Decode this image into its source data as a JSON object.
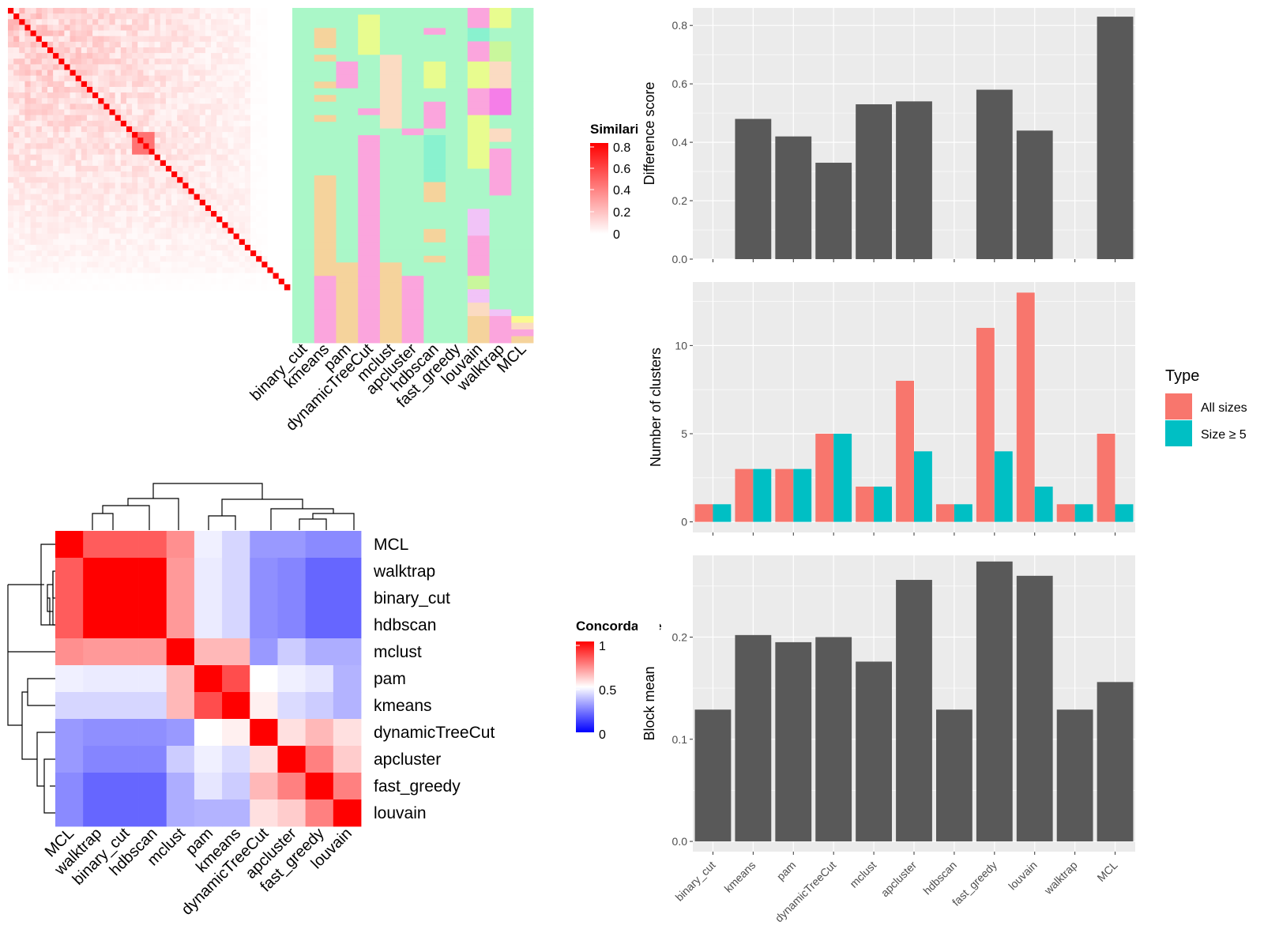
{
  "methods_assign": [
    "binary_cut",
    "kmeans",
    "pam",
    "dynamicTreeCut",
    "mclust",
    "apcluster",
    "hdbscan",
    "fast_greedy",
    "louvain",
    "walktrap",
    "MCL"
  ],
  "methods_concord": [
    "MCL",
    "walktrap",
    "binary_cut",
    "hdbscan",
    "mclust",
    "pam",
    "kmeans",
    "dynamicTreeCut",
    "apcluster",
    "fast_greedy",
    "louvain"
  ],
  "colors": {
    "red": "#ff0000",
    "blue": "#0000ff",
    "white": "#ffffff",
    "panel": "#ebebeb",
    "bar": "#595959",
    "coral": "#f8766d",
    "teal": "#00bfc4",
    "assign_bg": "#aaf7c8"
  },
  "similarity_legend": {
    "title": "Similarity",
    "ticks": [
      "0.8",
      "0.6",
      "0.4",
      "0.2",
      "0"
    ]
  },
  "concordance_legend": {
    "title": "Concordance",
    "ticks": [
      "1",
      "0.5",
      "0"
    ]
  },
  "type_legend": {
    "title": "Type",
    "items": [
      "All sizes",
      "Size ≥ 5"
    ]
  },
  "chart_data": [
    {
      "type": "heatmap",
      "id": "similarity-matrix",
      "n": 50,
      "diagonal": 1,
      "range": [
        0,
        0.8
      ]
    },
    {
      "type": "heatmap",
      "id": "cluster-assignment",
      "columns": [
        "binary_cut",
        "kmeans",
        "pam",
        "dynamicTreeCut",
        "mclust",
        "apcluster",
        "hdbscan",
        "fast_greedy",
        "louvain",
        "walktrap",
        "MCL"
      ],
      "rows": 50,
      "cluster_colors": [
        "#aaf7c8",
        "#f5d39c",
        "#fba5dd",
        "#e8fc8f",
        "#fbdbc2",
        "#89f2cf",
        "#f1c3f7",
        "#f57ee8",
        "#c9f79c",
        "#f9fa8e"
      ],
      "assignments": [
        [
          0,
          0,
          0,
          0,
          0,
          0,
          0,
          0,
          0,
          0,
          0,
          0,
          0,
          0,
          0,
          0,
          0,
          0,
          0,
          0,
          0,
          0,
          0,
          0,
          0,
          0,
          0,
          0,
          0,
          0,
          0,
          0,
          0,
          0,
          0,
          0,
          0,
          0,
          0,
          0,
          0,
          0,
          0,
          0,
          0,
          0,
          0,
          0,
          0,
          0
        ],
        [
          0,
          0,
          0,
          1,
          1,
          1,
          0,
          1,
          0,
          0,
          0,
          1,
          0,
          1,
          0,
          0,
          1,
          0,
          0,
          0,
          0,
          0,
          0,
          0,
          0,
          1,
          1,
          1,
          1,
          1,
          1,
          1,
          1,
          1,
          1,
          1,
          1,
          1,
          1,
          1,
          2,
          2,
          2,
          2,
          2,
          2,
          2,
          2,
          2,
          2
        ],
        [
          0,
          0,
          0,
          0,
          0,
          0,
          0,
          0,
          2,
          2,
          2,
          2,
          0,
          0,
          0,
          0,
          0,
          0,
          0,
          0,
          0,
          0,
          0,
          0,
          0,
          0,
          0,
          0,
          0,
          0,
          0,
          0,
          0,
          0,
          0,
          0,
          0,
          0,
          1,
          1,
          1,
          1,
          1,
          1,
          1,
          1,
          1,
          1,
          1,
          1
        ],
        [
          0,
          3,
          3,
          3,
          3,
          3,
          3,
          0,
          0,
          0,
          0,
          0,
          0,
          0,
          0,
          2,
          0,
          0,
          0,
          2,
          2,
          2,
          2,
          2,
          2,
          2,
          2,
          2,
          2,
          2,
          2,
          2,
          2,
          2,
          2,
          2,
          2,
          2,
          2,
          2,
          2,
          2,
          2,
          2,
          2,
          2,
          2,
          2,
          2,
          2
        ],
        [
          0,
          0,
          0,
          0,
          0,
          0,
          0,
          4,
          4,
          4,
          4,
          4,
          4,
          4,
          4,
          4,
          4,
          4,
          0,
          0,
          0,
          0,
          0,
          0,
          0,
          0,
          0,
          0,
          0,
          0,
          0,
          0,
          0,
          0,
          0,
          0,
          0,
          0,
          1,
          1,
          1,
          1,
          1,
          1,
          1,
          1,
          1,
          1,
          1,
          1
        ],
        [
          0,
          0,
          0,
          0,
          0,
          0,
          0,
          0,
          0,
          0,
          0,
          0,
          0,
          0,
          0,
          0,
          0,
          0,
          2,
          0,
          0,
          0,
          0,
          0,
          0,
          0,
          0,
          0,
          0,
          0,
          0,
          0,
          0,
          0,
          0,
          0,
          0,
          0,
          0,
          0,
          2,
          2,
          2,
          2,
          2,
          2,
          2,
          2,
          2,
          2
        ],
        [
          0,
          0,
          0,
          2,
          0,
          0,
          0,
          0,
          3,
          3,
          3,
          3,
          0,
          0,
          2,
          2,
          2,
          2,
          0,
          5,
          5,
          5,
          5,
          5,
          5,
          5,
          1,
          1,
          1,
          0,
          0,
          0,
          0,
          1,
          1,
          0,
          0,
          1,
          0,
          0,
          0,
          0,
          0,
          0,
          0,
          0,
          0,
          0,
          0,
          0
        ],
        [
          0,
          0,
          0,
          0,
          0,
          0,
          0,
          0,
          0,
          0,
          0,
          0,
          0,
          0,
          0,
          0,
          0,
          0,
          0,
          0,
          0,
          0,
          0,
          0,
          0,
          0,
          0,
          0,
          0,
          0,
          0,
          0,
          0,
          0,
          0,
          0,
          0,
          0,
          0,
          0,
          0,
          0,
          0,
          0,
          0,
          0,
          0,
          0,
          0,
          0
        ],
        [
          2,
          2,
          2,
          5,
          5,
          2,
          2,
          2,
          3,
          3,
          3,
          3,
          2,
          2,
          2,
          2,
          3,
          3,
          3,
          3,
          3,
          3,
          3,
          3,
          0,
          0,
          0,
          0,
          0,
          0,
          6,
          6,
          6,
          6,
          2,
          2,
          2,
          2,
          2,
          2,
          8,
          8,
          6,
          6,
          4,
          4,
          1,
          1,
          1,
          1
        ],
        [
          3,
          3,
          3,
          0,
          0,
          8,
          8,
          8,
          4,
          4,
          4,
          4,
          7,
          7,
          7,
          7,
          0,
          0,
          4,
          4,
          0,
          2,
          2,
          2,
          2,
          2,
          2,
          2,
          0,
          0,
          0,
          0,
          0,
          0,
          0,
          0,
          0,
          0,
          0,
          0,
          0,
          0,
          0,
          0,
          0,
          6,
          2,
          2,
          2,
          2
        ],
        [
          0,
          0,
          0,
          0,
          0,
          0,
          0,
          0,
          0,
          0,
          0,
          0,
          0,
          0,
          0,
          0,
          0,
          0,
          0,
          0,
          0,
          0,
          0,
          0,
          0,
          0,
          0,
          0,
          0,
          0,
          0,
          0,
          0,
          0,
          0,
          0,
          0,
          0,
          0,
          0,
          0,
          0,
          0,
          0,
          0,
          0,
          9,
          4,
          2,
          1
        ]
      ]
    },
    {
      "type": "heatmap",
      "id": "concordance",
      "labels": [
        "MCL",
        "walktrap",
        "binary_cut",
        "hdbscan",
        "mclust",
        "pam",
        "kmeans",
        "dynamicTreeCut",
        "apcluster",
        "fast_greedy",
        "louvain"
      ],
      "range": [
        0,
        1
      ],
      "values": [
        [
          1.0,
          0.82,
          0.82,
          0.82,
          0.72,
          0.47,
          0.42,
          0.3,
          0.3,
          0.27,
          0.27
        ],
        [
          0.82,
          1.0,
          1.0,
          1.0,
          0.7,
          0.46,
          0.42,
          0.28,
          0.26,
          0.2,
          0.2
        ],
        [
          0.82,
          1.0,
          1.0,
          1.0,
          0.7,
          0.46,
          0.42,
          0.28,
          0.26,
          0.2,
          0.2
        ],
        [
          0.82,
          1.0,
          1.0,
          1.0,
          0.7,
          0.46,
          0.42,
          0.28,
          0.26,
          0.2,
          0.2
        ],
        [
          0.72,
          0.7,
          0.7,
          0.7,
          1.0,
          0.64,
          0.64,
          0.3,
          0.4,
          0.34,
          0.34
        ],
        [
          0.47,
          0.46,
          0.46,
          0.46,
          0.64,
          1.0,
          0.85,
          0.5,
          0.47,
          0.45,
          0.35
        ],
        [
          0.42,
          0.42,
          0.42,
          0.42,
          0.64,
          0.85,
          1.0,
          0.53,
          0.43,
          0.4,
          0.35
        ],
        [
          0.3,
          0.28,
          0.28,
          0.28,
          0.3,
          0.5,
          0.53,
          1.0,
          0.56,
          0.64,
          0.56
        ],
        [
          0.3,
          0.26,
          0.26,
          0.26,
          0.4,
          0.47,
          0.43,
          0.56,
          1.0,
          0.75,
          0.6
        ],
        [
          0.27,
          0.2,
          0.2,
          0.2,
          0.34,
          0.45,
          0.4,
          0.64,
          0.75,
          1.0,
          0.75
        ],
        [
          0.27,
          0.2,
          0.2,
          0.2,
          0.34,
          0.35,
          0.35,
          0.56,
          0.6,
          0.75,
          1.0
        ]
      ]
    },
    {
      "type": "bar",
      "id": "difference-score",
      "categories": [
        "binary_cut",
        "kmeans",
        "pam",
        "dynamicTreeCut",
        "mclust",
        "apcluster",
        "hdbscan",
        "fast_greedy",
        "louvain",
        "walktrap",
        "MCL"
      ],
      "values": [
        0,
        0.48,
        0.42,
        0.33,
        0.53,
        0.54,
        0,
        0.58,
        0.44,
        0,
        0.83
      ],
      "ylabel": "Difference score",
      "ylim": [
        0,
        0.86
      ],
      "yticks": [
        0.0,
        0.2,
        0.4,
        0.6,
        0.8
      ],
      "grid": true
    },
    {
      "type": "bar",
      "id": "number-of-clusters",
      "categories": [
        "binary_cut",
        "kmeans",
        "pam",
        "dynamicTreeCut",
        "mclust",
        "apcluster",
        "hdbscan",
        "fast_greedy",
        "louvain",
        "walktrap",
        "MCL"
      ],
      "series": [
        {
          "name": "All sizes",
          "values": [
            1,
            3,
            3,
            5,
            2,
            8,
            1,
            11,
            13,
            1,
            5
          ]
        },
        {
          "name": "Size ≥ 5",
          "values": [
            1,
            3,
            3,
            5,
            2,
            4,
            1,
            4,
            2,
            1,
            1
          ]
        }
      ],
      "ylabel": "Number of clusters",
      "ylim": [
        -0.6,
        13.6
      ],
      "yticks": [
        0,
        5,
        10
      ],
      "legend": "right",
      "grid": true
    },
    {
      "type": "bar",
      "id": "block-mean",
      "categories": [
        "binary_cut",
        "kmeans",
        "pam",
        "dynamicTreeCut",
        "mclust",
        "apcluster",
        "hdbscan",
        "fast_greedy",
        "louvain",
        "walktrap",
        "MCL"
      ],
      "values": [
        0.129,
        0.202,
        0.195,
        0.2,
        0.176,
        0.256,
        0.129,
        0.274,
        0.26,
        0.129,
        0.156
      ],
      "ylabel": "Block mean",
      "ylim": [
        -0.01,
        0.28
      ],
      "yticks": [
        0.0,
        0.1,
        0.2
      ],
      "grid": true
    }
  ]
}
